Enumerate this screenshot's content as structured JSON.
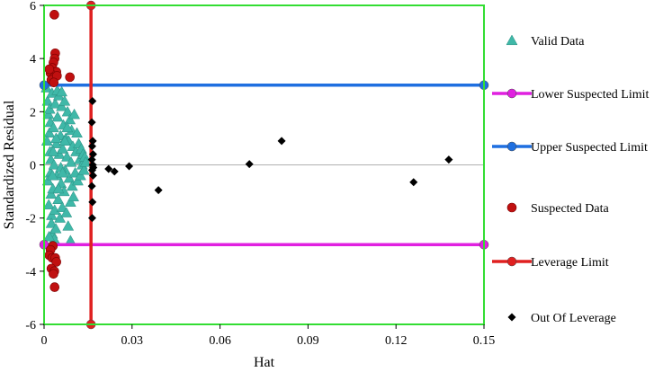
{
  "chart_data": {
    "type": "scatter",
    "xlabel": "Hat",
    "ylabel": "Standardized Residual",
    "xlim": [
      0,
      0.15
    ],
    "ylim": [
      -6,
      6
    ],
    "x_ticks": [
      "0",
      "0.03",
      "0.06",
      "0.09",
      "0.12",
      "0.15"
    ],
    "y_ticks": [
      "-6",
      "-4",
      "-2",
      "0",
      "2",
      "4",
      "6"
    ],
    "grid": false,
    "legend_position": "right",
    "colors": {
      "frame": "#33dd33",
      "valid": "#3fb8a8",
      "lower_limit": "#e020e0",
      "upper_limit": "#1f6fe0",
      "suspected": "#c01010",
      "leverage": "#e02020",
      "out_of_leverage": "#000000",
      "zero_line": "#b0b0b0"
    },
    "series": [
      {
        "name": "Valid Data",
        "marker": "triangle",
        "points": [
          [
            0.0008,
            2.9
          ],
          [
            0.0012,
            2.4
          ],
          [
            0.0015,
            1.9
          ],
          [
            0.0018,
            1.2
          ],
          [
            0.002,
            0.5
          ],
          [
            0.0022,
            -0.3
          ],
          [
            0.0024,
            -1.1
          ],
          [
            0.0026,
            -1.9
          ],
          [
            0.0028,
            -2.6
          ],
          [
            0.001,
            0.9
          ],
          [
            0.0013,
            -0.6
          ],
          [
            0.0016,
            -1.5
          ],
          [
            0.0019,
            2.1
          ],
          [
            0.0021,
            1.6
          ],
          [
            0.0023,
            0.2
          ],
          [
            0.0025,
            -2.2
          ],
          [
            0.0027,
            2.7
          ],
          [
            0.003,
            -0.9
          ],
          [
            0.0032,
            1.4
          ],
          [
            0.0034,
            0.0
          ],
          [
            0.0036,
            -1.7
          ],
          [
            0.0038,
            2.3
          ],
          [
            0.004,
            -2.4
          ],
          [
            0.0042,
            0.8
          ],
          [
            0.0044,
            -0.4
          ],
          [
            0.0046,
            1.8
          ],
          [
            0.0048,
            -1.3
          ],
          [
            0.005,
            2.6
          ],
          [
            0.0052,
            0.4
          ],
          [
            0.0054,
            -2.0
          ],
          [
            0.0056,
            1.1
          ],
          [
            0.0058,
            -0.7
          ],
          [
            0.006,
            2.2
          ],
          [
            0.0062,
            -1.6
          ],
          [
            0.0064,
            0.6
          ],
          [
            0.0066,
            1.5
          ],
          [
            0.0068,
            -1.0
          ],
          [
            0.007,
            2.4
          ],
          [
            0.0072,
            -0.2
          ],
          [
            0.0074,
            1.0
          ],
          [
            0.0076,
            -1.8
          ],
          [
            0.0078,
            0.3
          ],
          [
            0.008,
            2.0
          ],
          [
            0.0082,
            -2.3
          ],
          [
            0.0084,
            0.9
          ],
          [
            0.0086,
            -0.5
          ],
          [
            0.0088,
            1.7
          ],
          [
            0.009,
            -1.4
          ],
          [
            0.0092,
            0.1
          ],
          [
            0.0094,
            1.3
          ],
          [
            0.0096,
            -0.8
          ],
          [
            0.0098,
            0.7
          ],
          [
            0.01,
            -1.2
          ],
          [
            0.0103,
            1.9
          ],
          [
            0.0106,
            -0.3
          ],
          [
            0.0109,
            0.5
          ],
          [
            0.0112,
            1.2
          ],
          [
            0.0115,
            -0.6
          ],
          [
            0.0118,
            0.8
          ],
          [
            0.0121,
            0.2
          ],
          [
            0.0124,
            -0.4
          ],
          [
            0.0127,
            0.6
          ],
          [
            0.013,
            0.0
          ],
          [
            0.0133,
            0.4
          ],
          [
            0.0136,
            -0.2
          ],
          [
            0.0139,
            0.3
          ],
          [
            0.0142,
            0.1
          ],
          [
            0.0045,
            2.8
          ],
          [
            0.0035,
            -2.8
          ],
          [
            0.009,
            -2.85
          ],
          [
            0.006,
            2.75
          ],
          [
            0.0017,
            -2.7
          ],
          [
            0.0031,
            0.5
          ],
          [
            0.0041,
            1.0
          ],
          [
            0.0057,
            -0.1
          ],
          [
            0.0071,
            0.9
          ],
          [
            0.0029,
            -0.4
          ],
          [
            0.0049,
            -0.9
          ],
          [
            0.0063,
            -0.3
          ],
          [
            0.0079,
            1.4
          ]
        ]
      },
      {
        "name": "Lower Suspected Limit",
        "marker": "line-circle",
        "line": [
          [
            0,
            -3
          ],
          [
            0.15,
            -3
          ]
        ]
      },
      {
        "name": "Upper Suspected Limit",
        "marker": "line-circle",
        "line": [
          [
            0,
            3
          ],
          [
            0.15,
            3
          ]
        ]
      },
      {
        "name": "Suspected Data",
        "marker": "circle",
        "points": [
          [
            0.0035,
            5.65
          ],
          [
            0.0038,
            4.2
          ],
          [
            0.0036,
            4.0
          ],
          [
            0.0032,
            3.85
          ],
          [
            0.0028,
            3.65
          ],
          [
            0.0042,
            3.5
          ],
          [
            0.0022,
            3.45
          ],
          [
            0.0035,
            3.3
          ],
          [
            0.0025,
            3.2
          ],
          [
            0.0044,
            3.35
          ],
          [
            0.0088,
            3.3
          ],
          [
            0.0018,
            3.6
          ],
          [
            0.0033,
            3.1
          ],
          [
            0.003,
            -3.05
          ],
          [
            0.0022,
            -3.2
          ],
          [
            0.0018,
            -3.4
          ],
          [
            0.0028,
            -3.5
          ],
          [
            0.0038,
            -3.5
          ],
          [
            0.0042,
            -3.65
          ],
          [
            0.0025,
            -3.9
          ],
          [
            0.0035,
            -4.0
          ],
          [
            0.0032,
            -4.1
          ],
          [
            0.0036,
            -4.6
          ]
        ]
      },
      {
        "name": "Leverage Limit",
        "marker": "line-circle",
        "line": [
          [
            0.016,
            -6
          ],
          [
            0.016,
            6
          ]
        ]
      },
      {
        "name": "Out Of Leverage",
        "marker": "diamond",
        "points": [
          [
            0.0165,
            2.4
          ],
          [
            0.0163,
            1.6
          ],
          [
            0.0166,
            0.9
          ],
          [
            0.0164,
            0.7
          ],
          [
            0.0167,
            0.4
          ],
          [
            0.0163,
            0.2
          ],
          [
            0.0166,
            0.0
          ],
          [
            0.0164,
            -0.2
          ],
          [
            0.0167,
            -0.4
          ],
          [
            0.0163,
            -0.8
          ],
          [
            0.0165,
            -1.4
          ],
          [
            0.0164,
            -2.0
          ],
          [
            0.0168,
            -0.1
          ],
          [
            0.022,
            -0.15
          ],
          [
            0.024,
            -0.25
          ],
          [
            0.029,
            -0.05
          ],
          [
            0.039,
            -0.95
          ],
          [
            0.07,
            0.03
          ],
          [
            0.081,
            0.9
          ],
          [
            0.126,
            -0.65
          ],
          [
            0.138,
            0.2
          ]
        ]
      }
    ]
  }
}
